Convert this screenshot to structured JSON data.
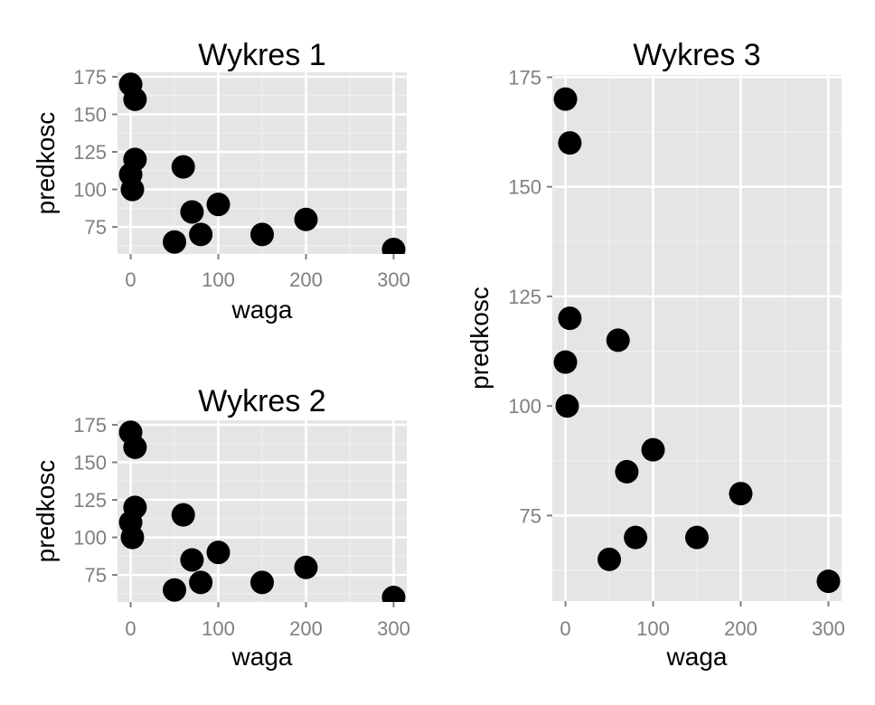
{
  "chart_data": [
    {
      "type": "scatter",
      "title": "Wykres 1",
      "xlabel": "waga",
      "ylabel": "predkosc",
      "xlim": [
        -15,
        315
      ],
      "ylim": [
        57,
        178
      ],
      "xticks": [
        0,
        100,
        200,
        300
      ],
      "yticks": [
        75,
        100,
        125,
        150,
        175
      ],
      "xtick_labels": [
        "0",
        "100",
        "200",
        "300"
      ],
      "ytick_labels": [
        "75",
        "100",
        "125",
        "150",
        "175"
      ],
      "grid": true,
      "point_color": "#000000",
      "background": "#e5e5e5",
      "x": [
        0,
        5,
        5,
        0,
        2,
        60,
        70,
        100,
        50,
        80,
        150,
        200,
        300
      ],
      "y": [
        170,
        160,
        120,
        110,
        100,
        115,
        85,
        90,
        65,
        70,
        70,
        80,
        60
      ]
    },
    {
      "type": "scatter",
      "title": "Wykres 2",
      "xlabel": "waga",
      "ylabel": "predkosc",
      "xlim": [
        -15,
        315
      ],
      "ylim": [
        57,
        178
      ],
      "xticks": [
        0,
        100,
        200,
        300
      ],
      "yticks": [
        75,
        100,
        125,
        150,
        175
      ],
      "xtick_labels": [
        "0",
        "100",
        "200",
        "300"
      ],
      "ytick_labels": [
        "75",
        "100",
        "125",
        "150",
        "175"
      ],
      "grid": true,
      "point_color": "#000000",
      "background": "#e5e5e5",
      "x": [
        0,
        5,
        5,
        0,
        2,
        60,
        70,
        100,
        50,
        80,
        150,
        200,
        300
      ],
      "y": [
        170,
        160,
        120,
        110,
        100,
        115,
        85,
        90,
        65,
        70,
        70,
        80,
        60
      ]
    },
    {
      "type": "scatter",
      "title": "Wykres 3",
      "xlabel": "waga",
      "ylabel": "predkosc",
      "xlim": [
        -15,
        315
      ],
      "ylim": [
        55.5,
        175.5
      ],
      "xticks": [
        0,
        100,
        200,
        300
      ],
      "yticks": [
        75,
        100,
        125,
        150,
        175
      ],
      "xtick_labels": [
        "0",
        "100",
        "200",
        "300"
      ],
      "ytick_labels": [
        "75",
        "100",
        "125",
        "150",
        "175"
      ],
      "grid": true,
      "point_color": "#000000",
      "background": "#e5e5e5",
      "x": [
        0,
        5,
        5,
        0,
        2,
        60,
        70,
        100,
        50,
        80,
        150,
        200,
        300
      ],
      "y": [
        170,
        160,
        120,
        110,
        100,
        115,
        85,
        90,
        65,
        70,
        70,
        80,
        60
      ]
    }
  ]
}
